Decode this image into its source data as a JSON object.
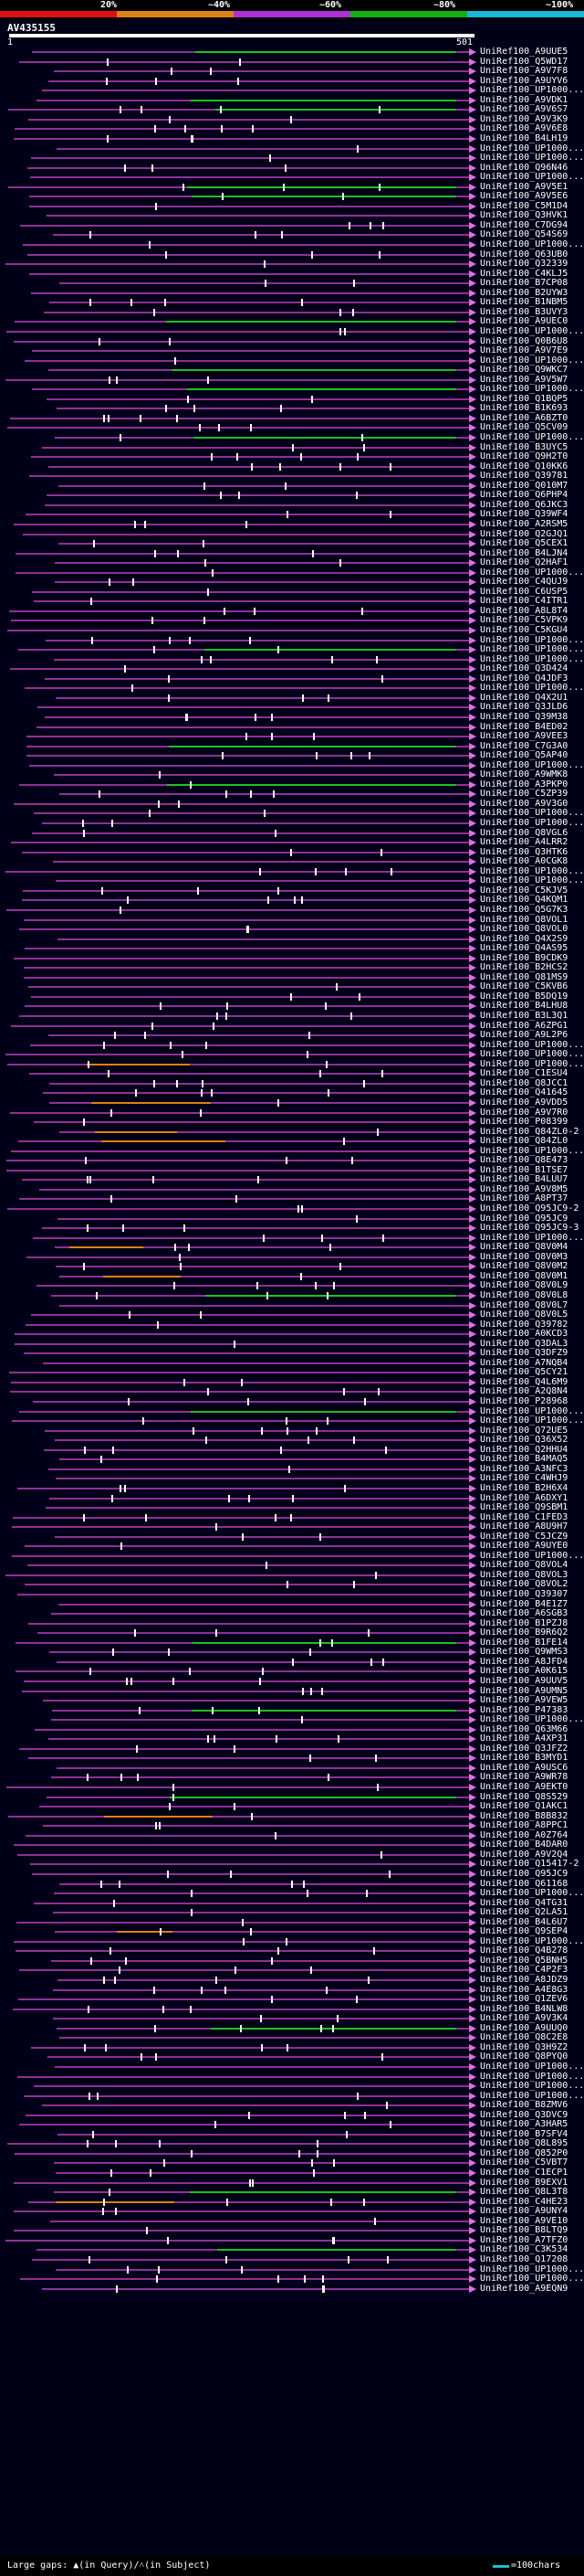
{
  "scale": {
    "labels": [
      "20%",
      "~40%",
      "~60%",
      "~80%",
      "~100%"
    ],
    "colors": [
      "#e01010",
      "#e08018",
      "#b030d8",
      "#10b010",
      "#18b8d8"
    ]
  },
  "query": {
    "title": "AV435155",
    "start": "1",
    "end": "501"
  },
  "hits": [
    "UniRef100_A9UUE5",
    "UniRef100_Q5WD17",
    "UniRef100_A9V7F8",
    "UniRef100_A9UYV6",
    "UniRef100_UP1000...",
    "UniRef100_A9VDK1",
    "UniRef100_A9V6S7",
    "UniRef100_A9V3K9",
    "UniRef100_A9V6E8",
    "UniRef100_B4LH19",
    "UniRef100_UP1000...",
    "UniRef100_UP1000...",
    "UniRef100_Q96N46",
    "UniRef100_UP1000...",
    "UniRef100_A9V5E1",
    "UniRef100_A9V5E6",
    "UniRef100_C5M1D4",
    "UniRef100_Q3HVK1",
    "UniRef100_C7DG94",
    "UniRef100_Q54S69",
    "UniRef100_UP1000...",
    "UniRef100_Q63UB0",
    "UniRef100_Q32339",
    "UniRef100_C4KLJ5",
    "UniRef100_B7CP08",
    "UniRef100_B2UYW3",
    "UniRef100_B1NBM5",
    "UniRef100_B3UVY3",
    "UniRef100_A9UEC0",
    "UniRef100_UP1000...",
    "UniRef100_Q0B6U8",
    "UniRef100_A9V7E9",
    "UniRef100_UP1000...",
    "UniRef100_Q9WKC7",
    "UniRef100_A9V5W7",
    "UniRef100_UP1000...",
    "UniRef100_Q1BQP5",
    "UniRef100_B1K693",
    "UniRef100_A6BZT0",
    "UniRef100_Q5CV09",
    "UniRef100_UP1000...",
    "UniRef100_B3UYC5",
    "UniRef100_Q9H2T0",
    "UniRef100_Q10KK6",
    "UniRef100_Q39781",
    "UniRef100_Q010M7",
    "UniRef100_Q6PHP4",
    "UniRef100_Q6JKC3",
    "UniRef100_Q39WF4",
    "UniRef100_A2RSM5",
    "UniRef100_Q2GJQ1",
    "UniRef100_Q5CEX1",
    "UniRef100_B4LJN4",
    "UniRef100_Q2HAF1",
    "UniRef100_UP1000...",
    "UniRef100_C4QUJ9",
    "UniRef100_C6USP5",
    "UniRef100_C4ITR1",
    "UniRef100_A8L8T4",
    "UniRef100_C5VPK9",
    "UniRef100_C5KGU4",
    "UniRef100_UP1000...",
    "UniRef100_UP1000...",
    "UniRef100_UP1000...",
    "UniRef100_Q3D424",
    "UniRef100_Q4JDF3",
    "UniRef100_UP1000...",
    "UniRef100_Q4X2U1",
    "UniRef100_Q3JLD6",
    "UniRef100_Q39M38",
    "UniRef100_B4ED02",
    "UniRef100_A9VEE3",
    "UniRef100_C7G3A0",
    "UniRef100_Q5AP40",
    "UniRef100_UP1000...",
    "UniRef100_A9WMK8",
    "UniRef100_A3PKP0",
    "UniRef100_C5ZP39",
    "UniRef100_A9V3G0",
    "UniRef100_UP1000...",
    "UniRef100_UP1000...",
    "UniRef100_Q8VGL6",
    "UniRef100_A4LRR2",
    "UniRef100_Q3HTK6",
    "UniRef100_A0CGK8",
    "UniRef100_UP1000...",
    "UniRef100_UP1000...",
    "UniRef100_C5KJV5",
    "UniRef100_Q4KQM1",
    "UniRef100_Q5G7K3",
    "UniRef100_Q8VOL1",
    "UniRef100_Q8VOL0",
    "UniRef100_Q4X2S9",
    "UniRef100_Q4AS95",
    "UniRef100_B9CDK9",
    "UniRef100_B2HCS2",
    "UniRef100_Q81MS9",
    "UniRef100_C5KVB6",
    "UniRef100_B5DQ19",
    "UniRef100_B4LHU8",
    "UniRef100_B3L3Q1",
    "UniRef100_A6ZPG1",
    "UniRef100_A9L2P6",
    "UniRef100_UP1000...",
    "UniRef100_UP1000...",
    "UniRef100_UP1000...",
    "UniRef100_C1ESU4",
    "UniRef100_Q8JCC1",
    "UniRef100_Q41645",
    "UniRef100_A9VDD5",
    "UniRef100_A9V7R0",
    "UniRef100_P08399",
    "UniRef100_Q84ZL0-2",
    "UniRef100_Q84ZL0",
    "UniRef100_UP1000...",
    "UniRef100_Q8E473",
    "UniRef100_B1TSE7",
    "UniRef100_B4LUU7",
    "UniRef100_A9V8M5",
    "UniRef100_A8PT37",
    "UniRef100_Q95JC9-2",
    "UniRef100_Q95JC9",
    "UniRef100_Q95JC9-3",
    "UniRef100_UP1000...",
    "UniRef100_Q8V0M4",
    "UniRef100_Q8V0M3",
    "UniRef100_Q8V0M2",
    "UniRef100_Q8V0M1",
    "UniRef100_Q8V0L9",
    "UniRef100_Q8V0L8",
    "UniRef100_Q8V0L7",
    "UniRef100_Q8V0L5",
    "UniRef100_Q39782",
    "UniRef100_A0KCD3",
    "UniRef100_Q3DAL3",
    "UniRef100_Q3DFZ9",
    "UniRef100_A7NQB4",
    "UniRef100_Q5CY21",
    "UniRef100_Q4L6M9",
    "UniRef100_A2Q8N4",
    "UniRef100_P28968",
    "UniRef100_UP1000...",
    "UniRef100_UP1000...",
    "UniRef100_Q72UE5",
    "UniRef100_Q36X52",
    "UniRef100_Q2HHU4",
    "UniRef100_B4MAQ5",
    "UniRef100_A3NFC3",
    "UniRef100_C4WHJ9",
    "UniRef100_B2H6X4",
    "UniRef100_A6DXY1",
    "UniRef100_Q9SBM1",
    "UniRef100_C1FED3",
    "UniRef100_A8U9H7",
    "UniRef100_C5JCZ9",
    "UniRef100_A9UYE0",
    "UniRef100_UP1000...",
    "UniRef100_Q8VOL4",
    "UniRef100_Q8VOL3",
    "UniRef100_Q8VOL2",
    "UniRef100_Q39307",
    "UniRef100_B4E1Z7",
    "UniRef100_A6SGB3",
    "UniRef100_B1PZJ8",
    "UniRef100_B9R6Q2",
    "UniRef100_B1FE14",
    "UniRef100_Q9WMS3",
    "UniRef100_A8JFD4",
    "UniRef100_A0K615",
    "UniRef100_A9UUV5",
    "UniRef100_A9UMN5",
    "UniRef100_A9VEW5",
    "UniRef100_P47383",
    "UniRef100_UP1000...",
    "UniRef100_Q63M66",
    "UniRef100_A4XP31",
    "UniRef100_Q3JFZ2",
    "UniRef100_B3MYD1",
    "UniRef100_A9USC6",
    "UniRef100_A9WR78",
    "UniRef100_A9EKT0",
    "UniRef100_Q8S529",
    "UniRef100_Q1AKC1",
    "UniRef100_B8B832",
    "UniRef100_A8PPC1",
    "UniRef100_A0Z764",
    "UniRef100_B4DAR0",
    "UniRef100_A9V2Q4",
    "UniRef100_Q15417-2",
    "UniRef100_Q95JC9",
    "UniRef100_Q61168",
    "UniRef100_UP1000...",
    "UniRef100_Q4TG31",
    "UniRef100_Q2LA51",
    "UniRef100_B4L6U7",
    "UniRef100_Q9SEP4",
    "UniRef100_UP1000...",
    "UniRef100_Q4B278",
    "UniRef100_Q5BNH5",
    "UniRef100_C4P2F3",
    "UniRef100_A8JDZ9",
    "UniRef100_A4E8G3",
    "UniRef100_Q1ZEV6",
    "UniRef100_B4NLW8",
    "UniRef100_A9V3K4",
    "UniRef100_A9UUQ0",
    "UniRef100_Q8C2E8",
    "UniRef100_Q3H9Z2",
    "UniRef100_Q8PYQ0",
    "UniRef100_UP1000...",
    "UniRef100_UP1000...",
    "UniRef100_UP1000...",
    "UniRef100_UP1000...",
    "UniRef100_B8ZMV6",
    "UniRef100_Q3DVC9",
    "UniRef100_A3HAR5",
    "UniRef100_B7SFV4",
    "UniRef100_Q8L895",
    "UniRef100_Q852P0",
    "UniRef100_C5VBT7",
    "UniRef100_C1ECP1",
    "UniRef100_B9EXV1",
    "UniRef100_Q8L3T8",
    "UniRef100_C4HE23",
    "UniRef100_A9UNY4",
    "UniRef100_A9VE10",
    "UniRef100_B8LTQ9",
    "UniRef100_A7TFZ0",
    "UniRef100_C3K534",
    "UniRef100_Q17208",
    "UniRef100_UP1000...",
    "UniRef100_UP1000...",
    "UniRef100_A9EQN9"
  ],
  "colors": {
    "hit": "#c040c0",
    "hit_green": "#20c020",
    "hit_orange": "#e08010",
    "background": "#000018",
    "scale_line": "#18c0d0"
  },
  "footer": {
    "legend": "Large gaps: ▲(in Query)/˄(in Subject)",
    "scale": "=100chars"
  }
}
